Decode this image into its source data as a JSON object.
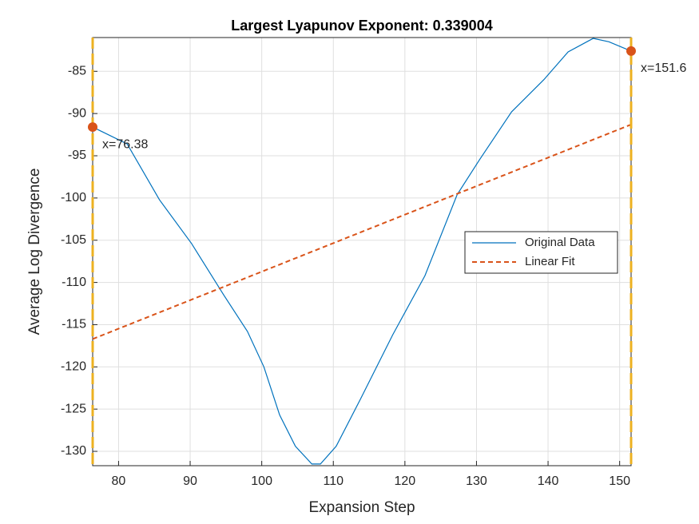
{
  "chart_data": {
    "type": "line",
    "title": "Largest Lyapunov Exponent: 0.339004",
    "xlabel": "Expansion Step",
    "ylabel": "Average Log Divergence",
    "xlim": [
      76.38,
      151.6
    ],
    "ylim": [
      -131.7,
      -81
    ],
    "xticks": [
      80,
      90,
      100,
      110,
      120,
      130,
      140,
      150
    ],
    "yticks": [
      -85,
      -90,
      -95,
      -100,
      -105,
      -110,
      -115,
      -120,
      -125,
      -130
    ],
    "grid": true,
    "legend": "east",
    "series": [
      {
        "name": "Original Data",
        "color": "#0072bd",
        "style": "solid",
        "x": [
          76.38,
          81.2,
          85.7,
          90.2,
          94.7,
          98,
          100.3,
          102.5,
          104.7,
          107,
          108.2,
          110.4,
          113.8,
          118.3,
          122.8,
          127.3,
          130.4,
          134.9,
          139.4,
          142.8,
          146.3,
          148.5,
          151.6
        ],
        "values": [
          -91.6,
          -93.6,
          -100.2,
          -105.4,
          -111.5,
          -115.8,
          -120,
          -125.7,
          -129.4,
          -131.5,
          -131.5,
          -129.4,
          -123.8,
          -116.2,
          -109.2,
          -99.6,
          -95.5,
          -89.8,
          -86,
          -82.7,
          -81.1,
          -81.5,
          -82.6
        ]
      },
      {
        "name": "Linear Fit",
        "color": "#d95319",
        "style": "dashed",
        "x": [
          76.38,
          151.6
        ],
        "values": [
          -116.7,
          -91.3
        ]
      }
    ],
    "markers": [
      {
        "x": 76.38,
        "y": -91.6,
        "label": "x=76.38"
      },
      {
        "x": 151.6,
        "y": -82.6,
        "label": "x=151.6"
      }
    ],
    "marker_color": "#d95319",
    "vline_color": "#edb120"
  }
}
